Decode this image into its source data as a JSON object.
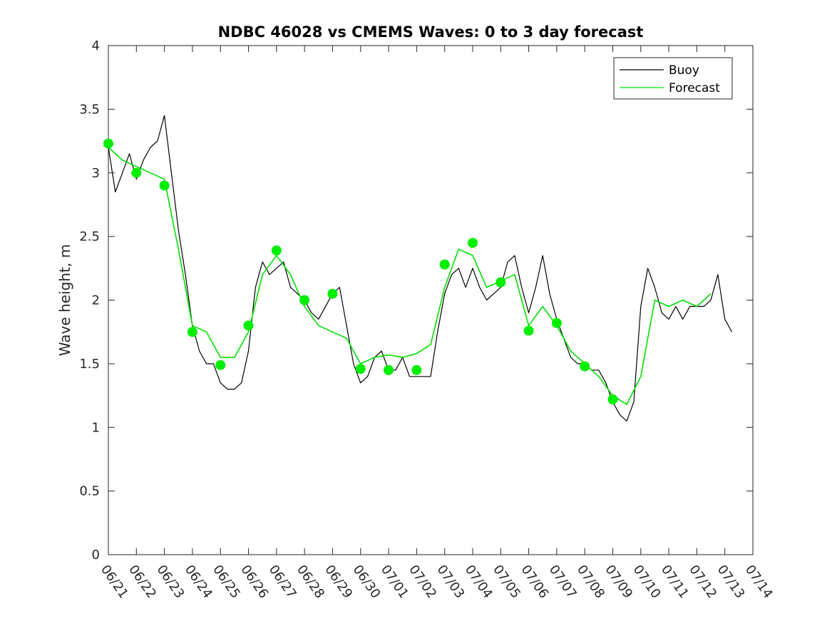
{
  "chart_data": {
    "type": "line",
    "title": "NDBC 46028 vs CMEMS Waves: 0 to 3 day forecast",
    "xlabel": "",
    "ylabel": "Wave height, m",
    "xlim": [
      "06/21",
      "07/14"
    ],
    "ylim": [
      0,
      4
    ],
    "x_ticks": [
      "06/21",
      "06/22",
      "06/23",
      "06/24",
      "06/25",
      "06/26",
      "06/27",
      "06/28",
      "06/29",
      "06/30",
      "07/01",
      "07/02",
      "07/03",
      "07/04",
      "07/05",
      "07/06",
      "07/07",
      "07/08",
      "07/09",
      "07/10",
      "07/11",
      "07/12",
      "07/13",
      "07/14"
    ],
    "y_ticks": [
      "0",
      "0.5",
      "1",
      "1.5",
      "2",
      "2.5",
      "3",
      "3.5",
      "4"
    ],
    "grid": false,
    "legend_position": "top-right",
    "legend": [
      {
        "name": "Buoy",
        "color": "#000000"
      },
      {
        "name": "Forecast",
        "color": "#00e000"
      }
    ],
    "series": [
      {
        "name": "Buoy",
        "color": "#000000",
        "x": [
          "06/21",
          "06/21 06",
          "06/21 12",
          "06/21 18",
          "06/22",
          "06/22 06",
          "06/22 12",
          "06/22 18",
          "06/23",
          "06/23 06",
          "06/23 12",
          "06/23 18",
          "06/24",
          "06/24 06",
          "06/24 12",
          "06/24 18",
          "06/25",
          "06/25 06",
          "06/25 12",
          "06/25 18",
          "06/26",
          "06/26 06",
          "06/26 12",
          "06/26 18",
          "06/27",
          "06/27 06",
          "06/27 12",
          "06/27 18",
          "06/28",
          "06/28 06",
          "06/28 12",
          "06/28 18",
          "06/29",
          "06/29 06",
          "06/29 12",
          "06/29 18",
          "06/30",
          "06/30 06",
          "06/30 12",
          "06/30 18",
          "07/01",
          "07/01 06",
          "07/01 12",
          "07/01 18",
          "07/02",
          "07/02 06",
          "07/02 12",
          "07/02 18",
          "07/03",
          "07/03 06",
          "07/03 12",
          "07/03 18",
          "07/04",
          "07/04 06",
          "07/04 12",
          "07/04 18",
          "07/05",
          "07/05 06",
          "07/05 12",
          "07/05 18",
          "07/06",
          "07/06 06",
          "07/06 12",
          "07/06 18",
          "07/07",
          "07/07 06",
          "07/07 12",
          "07/07 18",
          "07/08",
          "07/08 06",
          "07/08 12",
          "07/08 18",
          "07/09",
          "07/09 06",
          "07/09 12",
          "07/09 18",
          "07/10",
          "07/10 06",
          "07/10 12",
          "07/10 18",
          "07/11",
          "07/11 06",
          "07/11 12",
          "07/11 18",
          "07/12",
          "07/12 06",
          "07/12 12",
          "07/12 18",
          "07/13",
          "07/13 06"
        ],
        "y": [
          3.2,
          2.85,
          3.0,
          3.15,
          2.95,
          3.1,
          3.2,
          3.25,
          3.45,
          3.0,
          2.55,
          2.2,
          1.8,
          1.6,
          1.5,
          1.5,
          1.35,
          1.3,
          1.3,
          1.35,
          1.6,
          2.1,
          2.3,
          2.2,
          2.25,
          2.3,
          2.1,
          2.05,
          2.0,
          1.9,
          1.85,
          1.95,
          2.05,
          2.1,
          1.8,
          1.5,
          1.35,
          1.4,
          1.55,
          1.6,
          1.45,
          1.45,
          1.55,
          1.4,
          1.4,
          1.4,
          1.4,
          1.75,
          2.05,
          2.2,
          2.25,
          2.1,
          2.25,
          2.1,
          2.0,
          2.05,
          2.1,
          2.3,
          2.35,
          2.1,
          1.9,
          2.1,
          2.35,
          2.05,
          1.85,
          1.7,
          1.55,
          1.5,
          1.5,
          1.45,
          1.45,
          1.35,
          1.2,
          1.1,
          1.05,
          1.2,
          1.95,
          2.25,
          2.1,
          1.9,
          1.85,
          1.95,
          1.85,
          1.95,
          1.95,
          1.95,
          2.0,
          2.2,
          1.85,
          1.75
        ]
      },
      {
        "name": "Forecast",
        "color": "#00e000",
        "x": [
          "06/21",
          "06/21 12",
          "06/22",
          "06/22 12",
          "06/23",
          "06/23 12",
          "06/24",
          "06/24 12",
          "06/25",
          "06/25 12",
          "06/26",
          "06/26 12",
          "06/27",
          "06/27 12",
          "06/28",
          "06/28 12",
          "06/29",
          "06/29 12",
          "06/30",
          "06/30 12",
          "07/01",
          "07/01 12",
          "07/02",
          "07/02 12",
          "07/03",
          "07/03 12",
          "07/04",
          "07/04 12",
          "07/05",
          "07/05 12",
          "07/06",
          "07/06 12",
          "07/07",
          "07/07 12",
          "07/08",
          "07/08 12",
          "07/09",
          "07/09 12",
          "07/10",
          "07/10 12",
          "07/11",
          "07/11 12",
          "07/12",
          "07/12 12"
        ],
        "y": [
          3.2,
          3.1,
          3.05,
          3.0,
          2.95,
          2.4,
          1.8,
          1.75,
          1.55,
          1.55,
          1.75,
          2.2,
          2.35,
          2.2,
          1.95,
          1.8,
          1.75,
          1.7,
          1.5,
          1.55,
          1.57,
          1.55,
          1.58,
          1.65,
          2.1,
          2.4,
          2.35,
          2.1,
          2.15,
          2.2,
          1.8,
          1.95,
          1.8,
          1.6,
          1.5,
          1.4,
          1.25,
          1.18,
          1.4,
          2.0,
          1.95,
          2.0,
          1.95,
          2.05
        ]
      }
    ],
    "markers": {
      "name": "Forecast",
      "color": "#00ee00",
      "x": [
        "06/21",
        "06/22",
        "06/23",
        "06/24",
        "06/25",
        "06/26",
        "06/27",
        "06/28",
        "06/29",
        "06/30",
        "07/01",
        "07/02",
        "07/03",
        "07/04",
        "07/05",
        "07/06",
        "07/07",
        "07/08",
        "07/09"
      ],
      "y": [
        3.23,
        3.0,
        2.9,
        1.75,
        1.49,
        1.8,
        2.39,
        2.0,
        2.05,
        1.46,
        1.45,
        1.45,
        2.28,
        2.45,
        2.14,
        1.76,
        1.82,
        1.48,
        1.22
      ]
    }
  }
}
